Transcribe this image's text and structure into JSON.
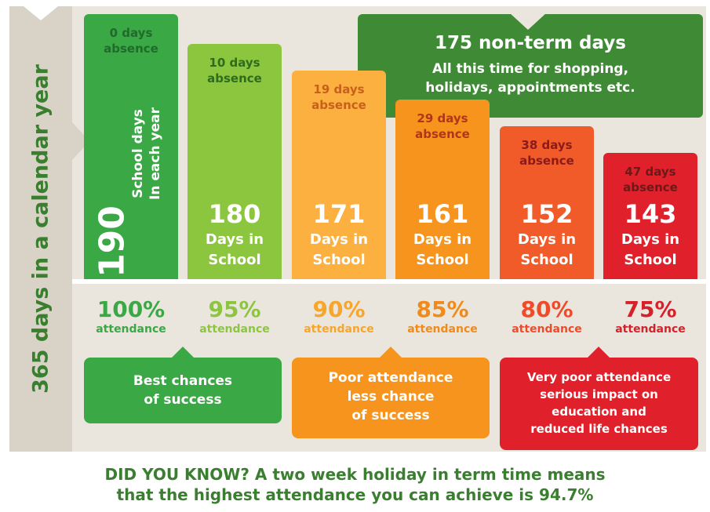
{
  "side_label": "365 days in a calendar year",
  "non_term": {
    "title": "175 non-term days",
    "description_line1": "All this time for shopping,",
    "description_line2": "holidays, appointments etc."
  },
  "school_days": {
    "number": "190",
    "label_line1": "School days",
    "label_line2": "In each year"
  },
  "chart_data": {
    "type": "bar",
    "title": "",
    "xlabel": "",
    "ylabel": "365 days in a calendar year",
    "ylim": [
      0,
      190
    ],
    "categories": [
      "100%",
      "95%",
      "90%",
      "85%",
      "80%",
      "75%"
    ],
    "series": [
      {
        "values": [
          190,
          180,
          171,
          161,
          152,
          143
        ]
      }
    ],
    "absence_days": [
      0,
      10,
      19,
      29,
      38,
      47
    ],
    "bars": [
      {
        "absence_line1": "0 days",
        "absence_line2": "absence",
        "days": "",
        "days_line1": "",
        "days_line2": "",
        "percent": "100%",
        "attendance": "attendance",
        "color": "#3aa845",
        "absence_color": "#1f6b2a",
        "pct_color": "#3aa845"
      },
      {
        "absence_line1": "10 days",
        "absence_line2": "absence",
        "days": "180",
        "days_line1": "Days in",
        "days_line2": "School",
        "percent": "95%",
        "attendance": "attendance",
        "color": "#8cc63f",
        "absence_color": "#2f6b1e",
        "pct_color": "#8cc63f"
      },
      {
        "absence_line1": "19 days",
        "absence_line2": "absence",
        "days": "171",
        "days_line1": "Days in",
        "days_line2": "School",
        "percent": "90%",
        "attendance": "attendance",
        "color": "#fbb040",
        "absence_color": "#c8601a",
        "pct_color": "#f7a52b"
      },
      {
        "absence_line1": "29 days",
        "absence_line2": "absence",
        "days": "161",
        "days_line1": "Days in",
        "days_line2": "School",
        "percent": "85%",
        "attendance": "attendance",
        "color": "#f7941d",
        "absence_color": "#b0361a",
        "pct_color": "#f08a1a"
      },
      {
        "absence_line1": "38 days",
        "absence_line2": "absence",
        "days": "152",
        "days_line1": "Days in",
        "days_line2": "School",
        "percent": "80%",
        "attendance": "attendance",
        "color": "#f15a29",
        "absence_color": "#8b1a1a",
        "pct_color": "#ef4b2a"
      },
      {
        "absence_line1": "47 days",
        "absence_line2": "absence",
        "days": "143",
        "days_line1": "Days in",
        "days_line2": "School",
        "percent": "75%",
        "attendance": "attendance",
        "color": "#e0202a",
        "absence_color": "#6b1a1a",
        "pct_color": "#d7202a"
      }
    ]
  },
  "callouts": [
    {
      "line1": "Best chances",
      "line2": "of success",
      "line3": "",
      "line4": "",
      "color": "#3aa845"
    },
    {
      "line1": "Poor attendance",
      "line2": "less chance",
      "line3": "of success",
      "line4": "",
      "color": "#f7941d"
    },
    {
      "line1": "Very poor attendance",
      "line2": "serious impact on",
      "line3": "education and",
      "line4": "reduced life chances",
      "color": "#e0202a"
    }
  ],
  "footer": {
    "line1": "DID YOU KNOW? A two week holiday in term time means",
    "line2": "that the highest attendance you can achieve is 94.7%"
  }
}
